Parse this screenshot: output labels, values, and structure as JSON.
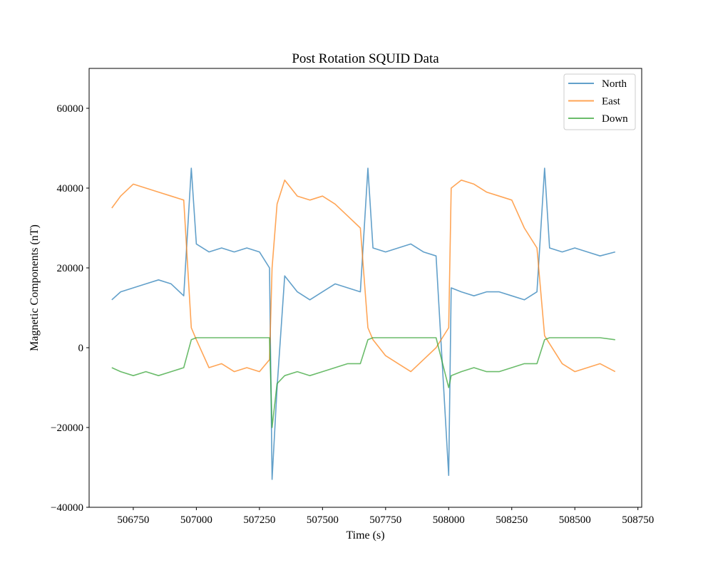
{
  "chart_data": {
    "type": "line",
    "title": "Post Rotation SQUID Data",
    "xlabel": "Time (s)",
    "ylabel": "Magnetic Components (nT)",
    "xlim": [
      506575,
      508765
    ],
    "ylim": [
      -40000,
      70000
    ],
    "xticks": [
      {
        "value": 506750,
        "label": "506750"
      },
      {
        "value": 507000,
        "label": "507000"
      },
      {
        "value": 507250,
        "label": "507250"
      },
      {
        "value": 507500,
        "label": "507500"
      },
      {
        "value": 507750,
        "label": "507750"
      },
      {
        "value": 508000,
        "label": "508000"
      },
      {
        "value": 508250,
        "label": "508250"
      },
      {
        "value": 508500,
        "label": "508500"
      },
      {
        "value": 508750,
        "label": "508750"
      }
    ],
    "yticks": [
      {
        "value": -40000,
        "label": "−40000"
      },
      {
        "value": -20000,
        "label": "−20000"
      },
      {
        "value": 0,
        "label": "0"
      },
      {
        "value": 20000,
        "label": "20000"
      },
      {
        "value": 40000,
        "label": "40000"
      },
      {
        "value": 60000,
        "label": "60000"
      }
    ],
    "grid": false,
    "legend": "top-right",
    "x": [
      506665,
      506700,
      506750,
      506800,
      506850,
      506900,
      506950,
      506980,
      507000,
      507050,
      507100,
      507150,
      507200,
      507250,
      507290,
      507300,
      507320,
      507350,
      507400,
      507450,
      507500,
      507550,
      507600,
      507650,
      507680,
      507700,
      507750,
      507800,
      507850,
      507900,
      507950,
      508000,
      508010,
      508050,
      508100,
      508150,
      508200,
      508250,
      508300,
      508350,
      508380,
      508400,
      508450,
      508500,
      508550,
      508600,
      508660
    ],
    "series": [
      {
        "name": "North",
        "color": "#1f77b4",
        "values": [
          12000,
          14000,
          15000,
          16000,
          17000,
          16000,
          13000,
          45000,
          26000,
          24000,
          25000,
          24000,
          25000,
          24000,
          20000,
          -33000,
          -10000,
          18000,
          14000,
          12000,
          14000,
          16000,
          15000,
          14000,
          45000,
          25000,
          24000,
          25000,
          26000,
          24000,
          23000,
          -32000,
          15000,
          14000,
          13000,
          14000,
          14000,
          13000,
          12000,
          14000,
          45000,
          25000,
          24000,
          25000,
          24000,
          23000,
          24000
        ]
      },
      {
        "name": "East",
        "color": "#ff7f0e",
        "values": [
          35000,
          38000,
          41000,
          40000,
          39000,
          38000,
          37000,
          5000,
          2000,
          -5000,
          -4000,
          -6000,
          -5000,
          -6000,
          -3000,
          20000,
          36000,
          42000,
          38000,
          37000,
          38000,
          36000,
          33000,
          30000,
          5000,
          2000,
          -2000,
          -4000,
          -6000,
          -3000,
          0,
          5000,
          40000,
          42000,
          41000,
          39000,
          38000,
          37000,
          30000,
          25000,
          3000,
          1000,
          -4000,
          -6000,
          -5000,
          -4000,
          -6000
        ]
      },
      {
        "name": "Down",
        "color": "#2ca02c",
        "values": [
          -5000,
          -6000,
          -7000,
          -6000,
          -7000,
          -6000,
          -5000,
          2000,
          2500,
          2500,
          2500,
          2500,
          2500,
          2500,
          2500,
          -20000,
          -9000,
          -7000,
          -6000,
          -7000,
          -6000,
          -5000,
          -4000,
          -4000,
          2000,
          2500,
          2500,
          2500,
          2500,
          2500,
          2500,
          -10000,
          -7000,
          -6000,
          -5000,
          -6000,
          -6000,
          -5000,
          -4000,
          -4000,
          2000,
          2500,
          2500,
          2500,
          2500,
          2500,
          2000
        ]
      }
    ]
  }
}
